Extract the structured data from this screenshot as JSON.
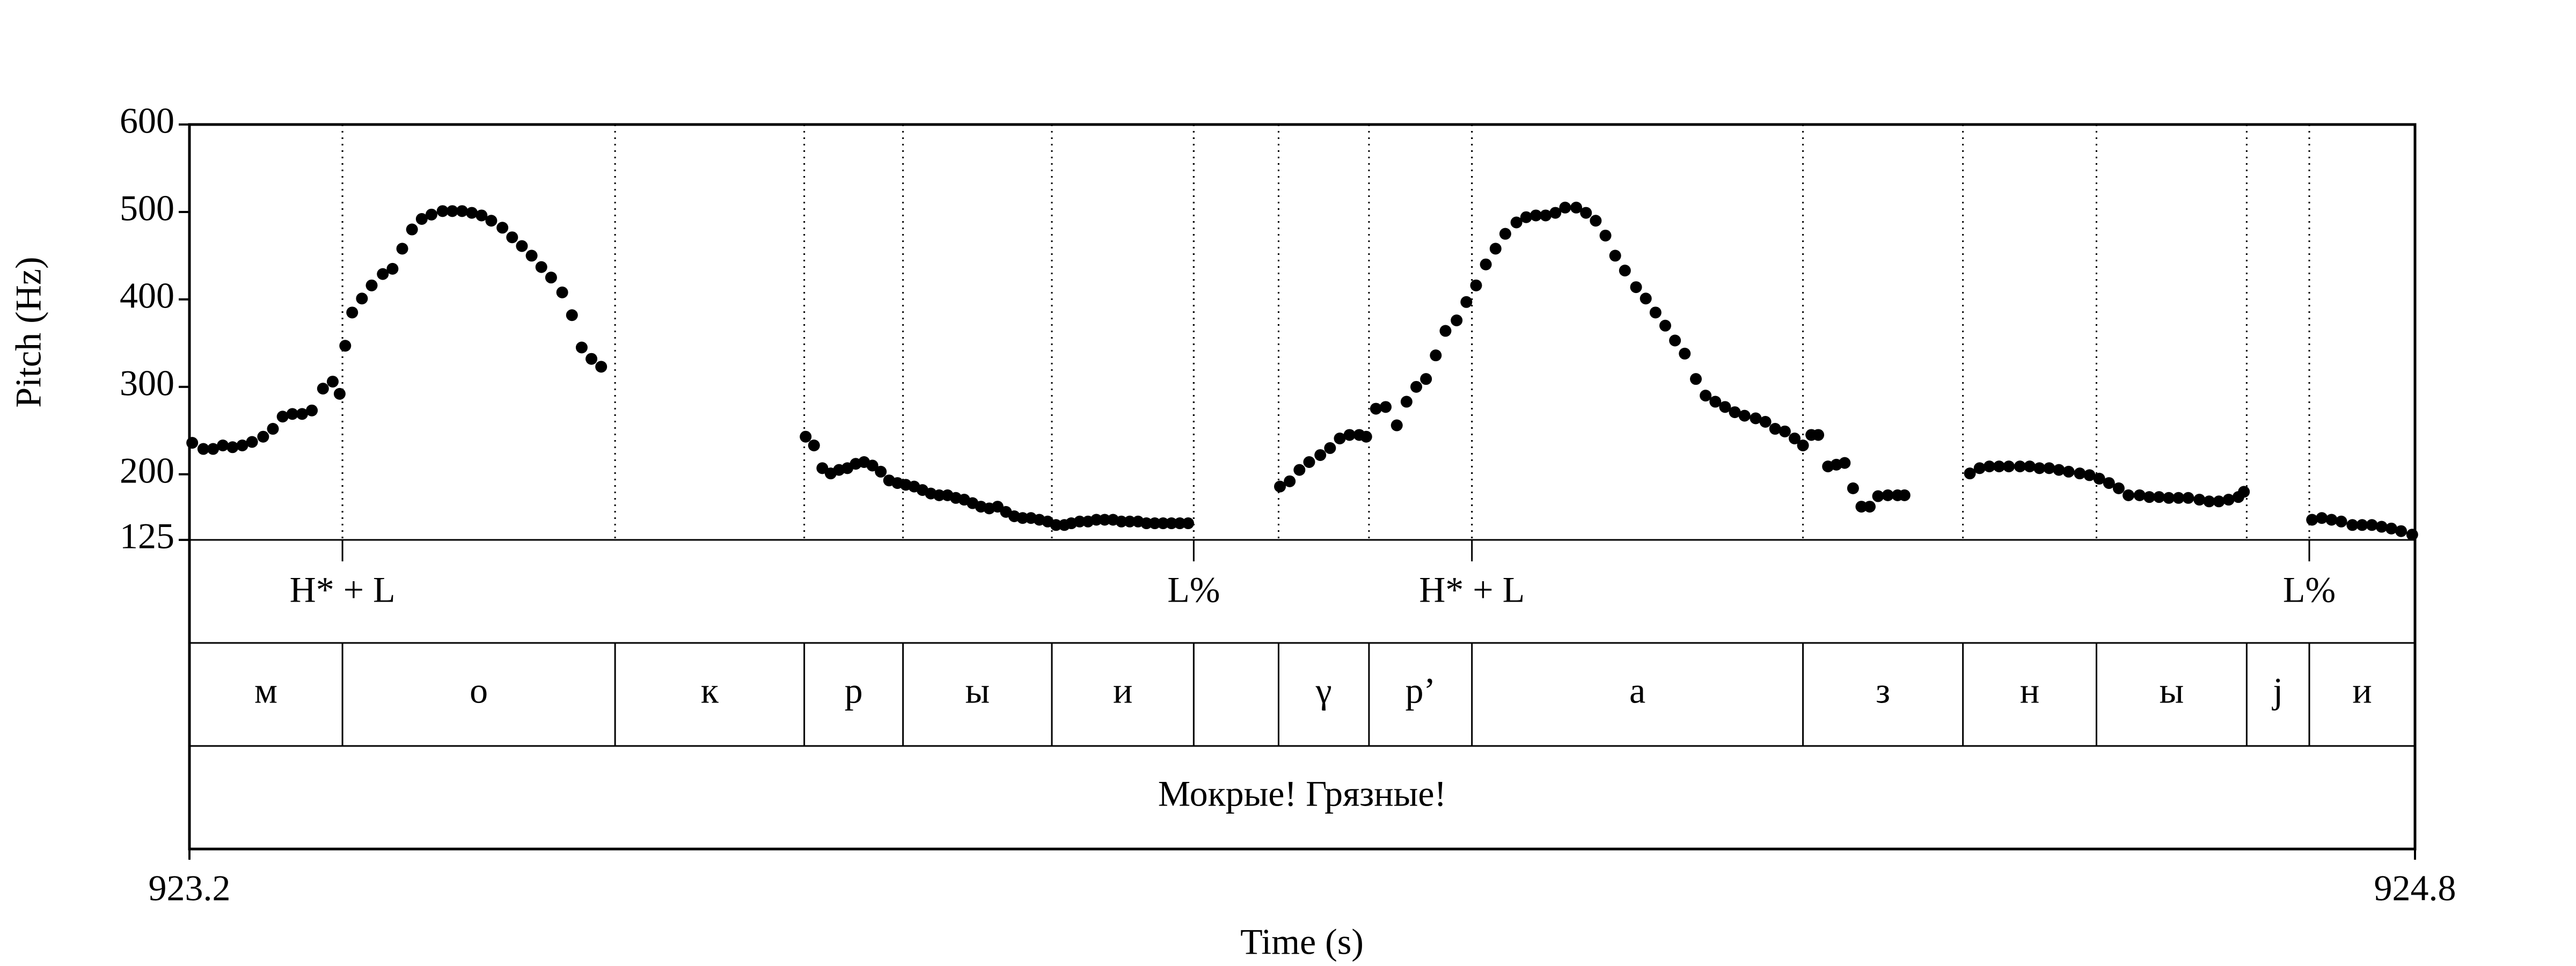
{
  "chart_data": {
    "type": "scatter",
    "ylabel": "Pitch (Hz)",
    "xlabel": "Time (s)",
    "xlim": [
      923.2,
      924.8
    ],
    "xticks": [
      923.2,
      924.8
    ],
    "ylim": [
      125,
      600
    ],
    "yticks": [
      125,
      200,
      300,
      400,
      500,
      600
    ],
    "color": "#000000",
    "x": [
      923.202,
      923.21,
      923.217,
      923.224,
      923.231,
      923.238,
      923.245,
      923.253,
      923.26,
      923.267,
      923.274,
      923.281,
      923.288,
      923.296,
      923.303,
      923.308,
      923.312,
      923.317,
      923.324,
      923.331,
      923.339,
      923.346,
      923.353,
      923.36,
      923.367,
      923.374,
      923.382,
      923.389,
      923.396,
      923.403,
      923.41,
      923.417,
      923.425,
      923.432,
      923.439,
      923.446,
      923.453,
      923.46,
      923.468,
      923.475,
      923.482,
      923.489,
      923.496,
      923.643,
      923.649,
      923.655,
      923.661,
      923.667,
      923.673,
      923.679,
      923.685,
      923.691,
      923.697,
      923.703,
      923.709,
      923.715,
      923.721,
      923.727,
      923.733,
      923.739,
      923.745,
      923.751,
      923.757,
      923.763,
      923.769,
      923.775,
      923.781,
      923.787,
      923.793,
      923.799,
      923.805,
      923.811,
      923.817,
      923.823,
      923.829,
      923.834,
      923.84,
      923.846,
      923.852,
      923.858,
      923.864,
      923.87,
      923.876,
      923.882,
      923.888,
      923.894,
      923.9,
      923.906,
      923.912,
      923.918,
      923.984,
      923.991,
      923.998,
      924.005,
      924.013,
      924.02,
      924.027,
      924.034,
      924.041,
      924.046,
      924.053,
      924.06,
      924.068,
      924.075,
      924.082,
      924.089,
      924.096,
      924.103,
      924.111,
      924.118,
      924.125,
      924.132,
      924.139,
      924.146,
      924.154,
      924.161,
      924.168,
      924.175,
      924.182,
      924.189,
      924.197,
      924.204,
      924.211,
      924.218,
      924.225,
      924.232,
      924.24,
      924.247,
      924.254,
      924.261,
      924.268,
      924.275,
      924.283,
      924.29,
      924.297,
      924.304,
      924.311,
      924.318,
      924.326,
      924.333,
      924.34,
      924.347,
      924.354,
      924.36,
      924.366,
      924.371,
      924.378,
      924.384,
      924.39,
      924.396,
      924.402,
      924.408,
      924.414,
      924.421,
      924.428,
      924.433,
      924.48,
      924.487,
      924.494,
      924.501,
      924.508,
      924.516,
      924.523,
      924.53,
      924.537,
      924.544,
      924.551,
      924.559,
      924.566,
      924.573,
      924.58,
      924.587,
      924.594,
      924.602,
      924.609,
      924.616,
      924.623,
      924.63,
      924.637,
      924.645,
      924.652,
      924.659,
      924.666,
      924.673,
      924.677,
      924.726,
      924.733,
      924.74,
      924.747,
      924.755,
      924.762,
      924.769,
      924.776,
      924.783,
      924.79,
      924.798
    ],
    "values": [
      236,
      229,
      229,
      233,
      231,
      233,
      237,
      243,
      252,
      266,
      269,
      269,
      273,
      298,
      306,
      292,
      347,
      385,
      401,
      416,
      429,
      435,
      458,
      480,
      492,
      497,
      501,
      501,
      501,
      499,
      496,
      490,
      482,
      471,
      461,
      450,
      437,
      425,
      408,
      382,
      345,
      332,
      323,
      243,
      233,
      207,
      201,
      205,
      207,
      212,
      214,
      210,
      203,
      193,
      190,
      188,
      186,
      182,
      178,
      176,
      176,
      173,
      171,
      167,
      163,
      161,
      163,
      157,
      152,
      150,
      150,
      148,
      146,
      142,
      142,
      144,
      146,
      146,
      148,
      148,
      148,
      146,
      146,
      146,
      144,
      144,
      144,
      144,
      144,
      144,
      186,
      192,
      205,
      214,
      222,
      230,
      241,
      245,
      245,
      243,
      275,
      277,
      256,
      283,
      300,
      309,
      336,
      364,
      376,
      397,
      416,
      440,
      458,
      475,
      488,
      494,
      496,
      496,
      499,
      505,
      505,
      499,
      490,
      473,
      450,
      433,
      414,
      401,
      385,
      370,
      353,
      338,
      309,
      290,
      283,
      277,
      271,
      267,
      264,
      260,
      252,
      249,
      241,
      233,
      245,
      245,
      209,
      211,
      213,
      184,
      163,
      163,
      175,
      176,
      176,
      176,
      201,
      207,
      209,
      209,
      209,
      209,
      209,
      207,
      207,
      205,
      203,
      201,
      199,
      195,
      190,
      184,
      176,
      176,
      174,
      174,
      173,
      173,
      173,
      171,
      169,
      169,
      171,
      174,
      180,
      148,
      150,
      148,
      146,
      142,
      142,
      142,
      140,
      138,
      135,
      131
    ],
    "tone_tier": {
      "times": [
        923.31,
        923.922,
        924.122,
        924.724
      ],
      "labels": [
        "H* + L",
        "L%",
        "H* + L",
        "L%"
      ]
    },
    "segment_tier": {
      "bounds": [
        923.2,
        923.31,
        923.506,
        923.642,
        923.713,
        923.82,
        923.922,
        923.983,
        924.048,
        924.122,
        924.36,
        924.475,
        924.571,
        924.679,
        924.724,
        924.8
      ],
      "labels": [
        "м",
        "о",
        "к",
        "р",
        "ы",
        "и",
        null,
        "γ",
        "р’",
        "а",
        "з",
        "н",
        "ы",
        "j",
        "и"
      ]
    },
    "word_tier": {
      "bounds": [
        923.2,
        924.8
      ],
      "labels": [
        "Мокрые! Грязные!"
      ]
    }
  }
}
